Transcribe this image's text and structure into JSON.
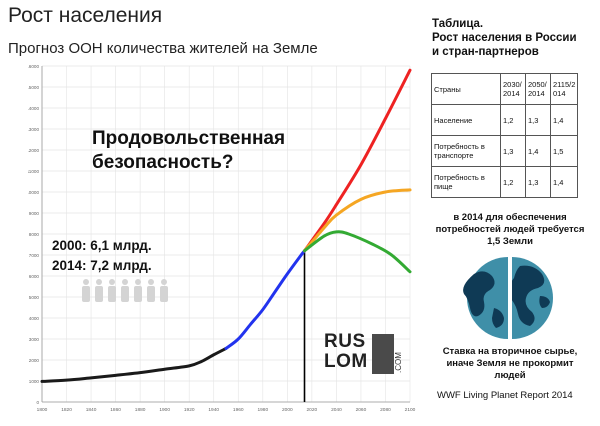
{
  "slide": {
    "title": "Рост населения",
    "subtitle": "Прогноз ООН количества жителей на Земле"
  },
  "chart": {
    "question_line1": "Продовольственная",
    "question_line2": "безопасность?",
    "stat_2000": "2000: 6,1 млрд.",
    "stat_2014": "2014: 7,2 млрд.",
    "watermark_top": "RUS",
    "watermark_bottom": "LOM",
    "watermark_com": ".COM",
    "colors": {
      "historic": "#1a1a1a",
      "projection_recent": "#2233ee",
      "high": "#ee2222",
      "medium": "#f5a623",
      "low": "#33aa33",
      "marker": "#000000"
    }
  },
  "chart_data": {
    "type": "line",
    "x_ticks": [
      "1800",
      "1820",
      "1840",
      "1860",
      "1880",
      "1900",
      "1920",
      "1940",
      "1960",
      "1980",
      "2000",
      "2020",
      "2040",
      "2060",
      "2080",
      "2100"
    ],
    "y_ticks": [
      "0",
      "1000",
      "2000",
      "3000",
      "4000",
      "5000",
      "6000",
      "7000",
      "8000",
      "9000",
      "10000",
      "11000",
      "12000",
      "13000",
      "14000",
      "15000",
      "16000"
    ],
    "xlim": [
      1800,
      2100
    ],
    "ylim": [
      0,
      16000
    ],
    "marker_year": 2014,
    "series": [
      {
        "color": "#1a1a1a",
        "points": [
          [
            1800,
            980
          ],
          [
            1820,
            1040
          ],
          [
            1840,
            1150
          ],
          [
            1860,
            1270
          ],
          [
            1880,
            1400
          ],
          [
            1900,
            1560
          ],
          [
            1920,
            1720
          ],
          [
            1930,
            1930
          ],
          [
            1940,
            2250
          ],
          [
            1950,
            2550
          ]
        ]
      },
      {
        "color": "#2233ee",
        "points": [
          [
            1950,
            2550
          ],
          [
            1960,
            3000
          ],
          [
            1970,
            3700
          ],
          [
            1980,
            4400
          ],
          [
            1990,
            5250
          ],
          [
            2000,
            6100
          ],
          [
            2010,
            6900
          ],
          [
            2014,
            7200
          ]
        ]
      },
      {
        "color": "#ee2222",
        "points": [
          [
            2014,
            7200
          ],
          [
            2030,
            8500
          ],
          [
            2040,
            9400
          ],
          [
            2060,
            11300
          ],
          [
            2080,
            13500
          ],
          [
            2100,
            15800
          ]
        ]
      },
      {
        "color": "#f5a623",
        "points": [
          [
            2014,
            7200
          ],
          [
            2030,
            8300
          ],
          [
            2040,
            8900
          ],
          [
            2060,
            9650
          ],
          [
            2080,
            10000
          ],
          [
            2100,
            10100
          ]
        ]
      },
      {
        "color": "#33aa33",
        "points": [
          [
            2014,
            7200
          ],
          [
            2030,
            7900
          ],
          [
            2040,
            8100
          ],
          [
            2050,
            8000
          ],
          [
            2070,
            7500
          ],
          [
            2085,
            7000
          ],
          [
            2100,
            6200
          ]
        ]
      }
    ]
  },
  "table": {
    "title_line1": "Таблица.",
    "title_line2": "Рост населения в России",
    "title_line3": "и стран-партнеров",
    "header": [
      "Страны",
      "2030/ 2014",
      "2050/ 2014",
      "2115/2 014"
    ],
    "rows": [
      [
        "Население",
        "1,2",
        "1,3",
        "1,4"
      ],
      [
        "Потребность в транспорте",
        "1,3",
        "1,4",
        "1,5"
      ],
      [
        "Потребность в пище",
        "1,2",
        "1,3",
        "1,4"
      ]
    ]
  },
  "notes": {
    "earth_need": "в 2014 для обеспечения потребностей людей требуется 1,5 Земли",
    "recycling": "Ставка на вторичное сырье, иначе Земля не прокормит людей",
    "source": "WWF Living Planet Report 2014"
  }
}
